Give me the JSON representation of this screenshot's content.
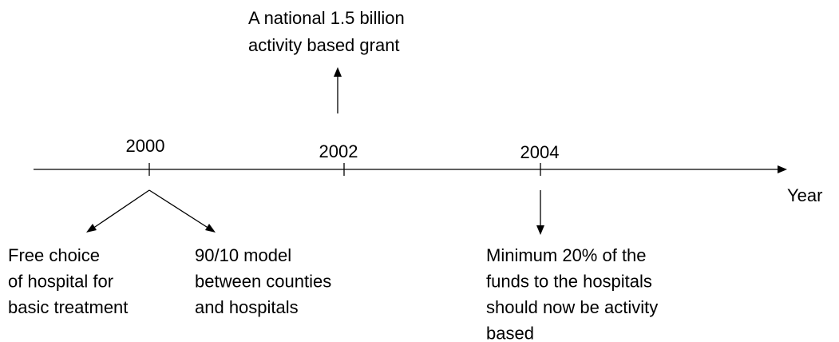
{
  "axis_label": "Year",
  "ticks": [
    "2000",
    "2002",
    "2004"
  ],
  "events": [
    {
      "lines": [
        "A national 1.5 billion",
        "activity based grant"
      ]
    },
    {
      "lines": [
        "Free choice",
        "of hospital for",
        "basic treatment"
      ]
    },
    {
      "lines": [
        "90/10 model",
        "between counties",
        "and hospitals"
      ]
    },
    {
      "lines": [
        "Minimum 20% of the",
        "funds to the hospitals",
        "should now be activity",
        "based"
      ]
    }
  ]
}
